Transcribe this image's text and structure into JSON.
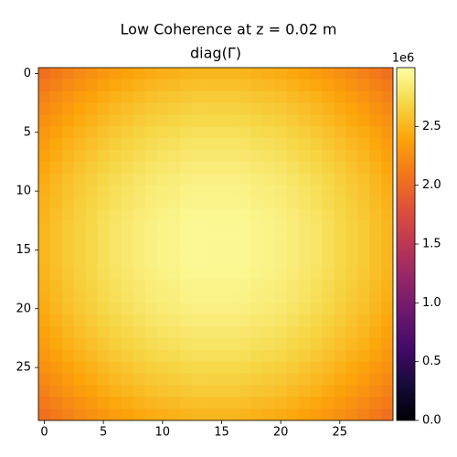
{
  "chart_data": {
    "type": "heatmap",
    "title": "Low Coherence at z = 0.02 m",
    "subtitle": "diag(Γ)",
    "colormap": "inferno",
    "clim": [
      0,
      3.0
    ],
    "colorbar_offset": "1e6",
    "colorbar_ticks": [
      {
        "value": 0,
        "label": "0.0"
      },
      0.5,
      {
        "value": 1,
        "label": "1.0"
      },
      1.5,
      {
        "value": 2,
        "label": "2.0"
      },
      2.5
    ],
    "xlim": [
      -0.5,
      29.5
    ],
    "ylim": [
      29.5,
      -0.5
    ],
    "xticks": [
      0,
      5,
      10,
      15,
      20,
      25
    ],
    "yticks": [
      0,
      5,
      10,
      15,
      20,
      25
    ],
    "z": [
      [
        2.05,
        2.11,
        2.17,
        2.22,
        2.26,
        2.31,
        2.35,
        2.38,
        2.41,
        2.44,
        2.46,
        2.47,
        2.49,
        2.5,
        2.5,
        2.5,
        2.5,
        2.49,
        2.47,
        2.46,
        2.44,
        2.41,
        2.38,
        2.35,
        2.31,
        2.26,
        2.22,
        2.17,
        2.11,
        2.05
      ],
      [
        2.11,
        2.17,
        2.23,
        2.28,
        2.32,
        2.37,
        2.41,
        2.44,
        2.47,
        2.5,
        2.52,
        2.53,
        2.55,
        2.56,
        2.56,
        2.56,
        2.56,
        2.55,
        2.53,
        2.52,
        2.5,
        2.47,
        2.44,
        2.41,
        2.37,
        2.32,
        2.28,
        2.23,
        2.17,
        2.11
      ],
      [
        2.17,
        2.23,
        2.29,
        2.34,
        2.38,
        2.43,
        2.47,
        2.5,
        2.53,
        2.56,
        2.58,
        2.59,
        2.61,
        2.62,
        2.62,
        2.62,
        2.62,
        2.61,
        2.59,
        2.58,
        2.56,
        2.53,
        2.5,
        2.47,
        2.43,
        2.38,
        2.34,
        2.29,
        2.23,
        2.17
      ],
      [
        2.22,
        2.28,
        2.34,
        2.39,
        2.43,
        2.48,
        2.52,
        2.55,
        2.58,
        2.61,
        2.63,
        2.64,
        2.66,
        2.67,
        2.67,
        2.67,
        2.67,
        2.66,
        2.64,
        2.63,
        2.61,
        2.58,
        2.55,
        2.52,
        2.48,
        2.43,
        2.39,
        2.34,
        2.28,
        2.22
      ],
      [
        2.26,
        2.32,
        2.38,
        2.43,
        2.47,
        2.52,
        2.56,
        2.59,
        2.62,
        2.65,
        2.67,
        2.68,
        2.7,
        2.71,
        2.71,
        2.71,
        2.71,
        2.7,
        2.68,
        2.67,
        2.65,
        2.62,
        2.59,
        2.56,
        2.52,
        2.47,
        2.43,
        2.38,
        2.32,
        2.26
      ],
      [
        2.31,
        2.37,
        2.43,
        2.48,
        2.52,
        2.57,
        2.61,
        2.64,
        2.67,
        2.7,
        2.72,
        2.73,
        2.75,
        2.76,
        2.76,
        2.76,
        2.76,
        2.75,
        2.73,
        2.72,
        2.7,
        2.67,
        2.64,
        2.61,
        2.57,
        2.52,
        2.48,
        2.43,
        2.37,
        2.31
      ],
      [
        2.35,
        2.41,
        2.47,
        2.52,
        2.56,
        2.61,
        2.65,
        2.68,
        2.71,
        2.74,
        2.76,
        2.77,
        2.79,
        2.8,
        2.8,
        2.8,
        2.8,
        2.79,
        2.77,
        2.76,
        2.74,
        2.71,
        2.68,
        2.65,
        2.61,
        2.56,
        2.52,
        2.47,
        2.41,
        2.35
      ],
      [
        2.38,
        2.44,
        2.5,
        2.55,
        2.59,
        2.64,
        2.68,
        2.71,
        2.74,
        2.77,
        2.79,
        2.8,
        2.82,
        2.83,
        2.83,
        2.83,
        2.83,
        2.82,
        2.8,
        2.79,
        2.77,
        2.74,
        2.71,
        2.68,
        2.64,
        2.59,
        2.55,
        2.5,
        2.44,
        2.38
      ],
      [
        2.41,
        2.47,
        2.53,
        2.58,
        2.62,
        2.67,
        2.71,
        2.74,
        2.77,
        2.8,
        2.82,
        2.83,
        2.85,
        2.86,
        2.86,
        2.86,
        2.86,
        2.85,
        2.83,
        2.82,
        2.8,
        2.77,
        2.74,
        2.71,
        2.67,
        2.62,
        2.58,
        2.53,
        2.47,
        2.41
      ],
      [
        2.44,
        2.5,
        2.56,
        2.61,
        2.65,
        2.7,
        2.74,
        2.77,
        2.8,
        2.83,
        2.85,
        2.86,
        2.88,
        2.89,
        2.89,
        2.89,
        2.89,
        2.88,
        2.86,
        2.85,
        2.83,
        2.8,
        2.77,
        2.74,
        2.7,
        2.65,
        2.61,
        2.56,
        2.5,
        2.44
      ],
      [
        2.46,
        2.52,
        2.58,
        2.63,
        2.67,
        2.72,
        2.76,
        2.79,
        2.82,
        2.85,
        2.87,
        2.88,
        2.9,
        2.91,
        2.91,
        2.91,
        2.91,
        2.9,
        2.88,
        2.87,
        2.85,
        2.82,
        2.79,
        2.76,
        2.72,
        2.67,
        2.63,
        2.58,
        2.52,
        2.46
      ],
      [
        2.47,
        2.53,
        2.59,
        2.64,
        2.68,
        2.73,
        2.77,
        2.8,
        2.83,
        2.86,
        2.88,
        2.89,
        2.91,
        2.92,
        2.92,
        2.92,
        2.92,
        2.91,
        2.89,
        2.88,
        2.86,
        2.83,
        2.8,
        2.77,
        2.73,
        2.68,
        2.64,
        2.59,
        2.53,
        2.47
      ],
      [
        2.49,
        2.55,
        2.61,
        2.66,
        2.7,
        2.75,
        2.79,
        2.82,
        2.85,
        2.88,
        2.9,
        2.91,
        2.93,
        2.94,
        2.94,
        2.94,
        2.94,
        2.93,
        2.91,
        2.9,
        2.88,
        2.85,
        2.82,
        2.79,
        2.75,
        2.7,
        2.66,
        2.61,
        2.55,
        2.49
      ],
      [
        2.5,
        2.56,
        2.62,
        2.67,
        2.71,
        2.76,
        2.8,
        2.83,
        2.86,
        2.89,
        2.91,
        2.92,
        2.94,
        2.95,
        2.95,
        2.95,
        2.95,
        2.94,
        2.92,
        2.91,
        2.89,
        2.86,
        2.83,
        2.8,
        2.76,
        2.71,
        2.67,
        2.62,
        2.56,
        2.5
      ],
      [
        2.5,
        2.56,
        2.62,
        2.67,
        2.71,
        2.76,
        2.8,
        2.83,
        2.86,
        2.89,
        2.91,
        2.92,
        2.94,
        2.95,
        2.95,
        2.95,
        2.95,
        2.94,
        2.92,
        2.91,
        2.89,
        2.86,
        2.83,
        2.8,
        2.76,
        2.71,
        2.67,
        2.62,
        2.56,
        2.5
      ],
      [
        2.5,
        2.56,
        2.62,
        2.67,
        2.71,
        2.76,
        2.8,
        2.83,
        2.86,
        2.89,
        2.91,
        2.92,
        2.94,
        2.95,
        2.95,
        2.95,
        2.95,
        2.94,
        2.92,
        2.91,
        2.89,
        2.86,
        2.83,
        2.8,
        2.76,
        2.71,
        2.67,
        2.62,
        2.56,
        2.5
      ],
      [
        2.5,
        2.56,
        2.62,
        2.67,
        2.71,
        2.76,
        2.8,
        2.83,
        2.86,
        2.89,
        2.91,
        2.92,
        2.94,
        2.95,
        2.95,
        2.95,
        2.95,
        2.94,
        2.92,
        2.91,
        2.89,
        2.86,
        2.83,
        2.8,
        2.76,
        2.71,
        2.67,
        2.62,
        2.56,
        2.5
      ],
      [
        2.49,
        2.55,
        2.61,
        2.66,
        2.7,
        2.75,
        2.79,
        2.82,
        2.85,
        2.88,
        2.9,
        2.91,
        2.93,
        2.94,
        2.94,
        2.94,
        2.94,
        2.93,
        2.91,
        2.9,
        2.88,
        2.85,
        2.82,
        2.79,
        2.75,
        2.7,
        2.66,
        2.61,
        2.55,
        2.49
      ],
      [
        2.47,
        2.53,
        2.59,
        2.64,
        2.68,
        2.73,
        2.77,
        2.8,
        2.83,
        2.86,
        2.88,
        2.89,
        2.91,
        2.92,
        2.92,
        2.92,
        2.92,
        2.91,
        2.89,
        2.88,
        2.86,
        2.83,
        2.8,
        2.77,
        2.73,
        2.68,
        2.64,
        2.59,
        2.53,
        2.47
      ],
      [
        2.46,
        2.52,
        2.58,
        2.63,
        2.67,
        2.72,
        2.76,
        2.79,
        2.82,
        2.85,
        2.87,
        2.88,
        2.9,
        2.91,
        2.91,
        2.91,
        2.91,
        2.9,
        2.88,
        2.87,
        2.85,
        2.82,
        2.79,
        2.76,
        2.72,
        2.67,
        2.63,
        2.58,
        2.52,
        2.46
      ],
      [
        2.44,
        2.5,
        2.56,
        2.61,
        2.65,
        2.7,
        2.74,
        2.77,
        2.8,
        2.83,
        2.85,
        2.86,
        2.88,
        2.89,
        2.89,
        2.89,
        2.89,
        2.88,
        2.86,
        2.85,
        2.83,
        2.8,
        2.77,
        2.74,
        2.7,
        2.65,
        2.61,
        2.56,
        2.5,
        2.44
      ],
      [
        2.41,
        2.47,
        2.53,
        2.58,
        2.62,
        2.67,
        2.71,
        2.74,
        2.77,
        2.8,
        2.82,
        2.83,
        2.85,
        2.86,
        2.86,
        2.86,
        2.86,
        2.85,
        2.83,
        2.82,
        2.8,
        2.77,
        2.74,
        2.71,
        2.67,
        2.62,
        2.58,
        2.53,
        2.47,
        2.41
      ],
      [
        2.38,
        2.44,
        2.5,
        2.55,
        2.59,
        2.64,
        2.68,
        2.71,
        2.74,
        2.77,
        2.79,
        2.8,
        2.82,
        2.83,
        2.83,
        2.83,
        2.83,
        2.82,
        2.8,
        2.79,
        2.77,
        2.74,
        2.71,
        2.68,
        2.64,
        2.59,
        2.55,
        2.5,
        2.44,
        2.38
      ],
      [
        2.35,
        2.41,
        2.47,
        2.52,
        2.56,
        2.61,
        2.65,
        2.68,
        2.71,
        2.74,
        2.76,
        2.77,
        2.79,
        2.8,
        2.8,
        2.8,
        2.8,
        2.79,
        2.77,
        2.76,
        2.74,
        2.71,
        2.68,
        2.65,
        2.61,
        2.56,
        2.52,
        2.47,
        2.41,
        2.35
      ],
      [
        2.31,
        2.37,
        2.43,
        2.48,
        2.52,
        2.57,
        2.61,
        2.64,
        2.67,
        2.7,
        2.72,
        2.73,
        2.75,
        2.76,
        2.76,
        2.76,
        2.76,
        2.75,
        2.73,
        2.72,
        2.7,
        2.67,
        2.64,
        2.61,
        2.57,
        2.52,
        2.48,
        2.43,
        2.37,
        2.31
      ],
      [
        2.26,
        2.32,
        2.38,
        2.43,
        2.47,
        2.52,
        2.56,
        2.59,
        2.62,
        2.65,
        2.67,
        2.68,
        2.7,
        2.71,
        2.71,
        2.71,
        2.71,
        2.7,
        2.68,
        2.67,
        2.65,
        2.62,
        2.59,
        2.56,
        2.52,
        2.47,
        2.43,
        2.38,
        2.32,
        2.26
      ],
      [
        2.22,
        2.28,
        2.34,
        2.39,
        2.43,
        2.48,
        2.52,
        2.55,
        2.58,
        2.61,
        2.63,
        2.64,
        2.66,
        2.67,
        2.67,
        2.67,
        2.67,
        2.66,
        2.64,
        2.63,
        2.61,
        2.58,
        2.55,
        2.52,
        2.48,
        2.43,
        2.39,
        2.34,
        2.28,
        2.22
      ],
      [
        2.17,
        2.23,
        2.29,
        2.34,
        2.38,
        2.43,
        2.47,
        2.5,
        2.53,
        2.56,
        2.58,
        2.59,
        2.61,
        2.62,
        2.62,
        2.62,
        2.62,
        2.61,
        2.59,
        2.58,
        2.56,
        2.53,
        2.5,
        2.47,
        2.43,
        2.38,
        2.34,
        2.29,
        2.23,
        2.17
      ],
      [
        2.11,
        2.17,
        2.23,
        2.28,
        2.32,
        2.37,
        2.41,
        2.44,
        2.47,
        2.5,
        2.52,
        2.53,
        2.55,
        2.56,
        2.56,
        2.56,
        2.56,
        2.55,
        2.53,
        2.52,
        2.5,
        2.47,
        2.44,
        2.41,
        2.37,
        2.32,
        2.28,
        2.23,
        2.17,
        2.11
      ],
      [
        2.05,
        2.11,
        2.17,
        2.22,
        2.26,
        2.31,
        2.35,
        2.38,
        2.41,
        2.44,
        2.46,
        2.47,
        2.49,
        2.5,
        2.5,
        2.5,
        2.5,
        2.49,
        2.47,
        2.46,
        2.44,
        2.41,
        2.38,
        2.35,
        2.31,
        2.26,
        2.22,
        2.17,
        2.11,
        2.05
      ]
    ]
  }
}
